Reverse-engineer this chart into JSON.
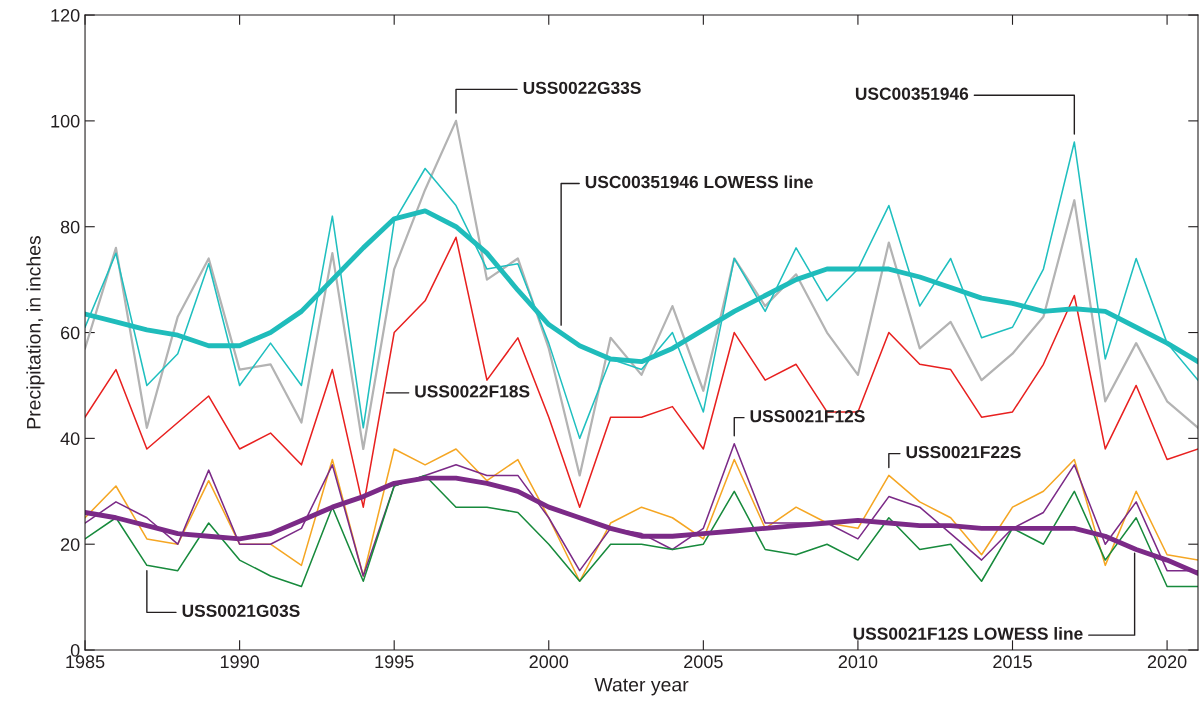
{
  "chart_data": {
    "type": "line",
    "xlabel": "Water year",
    "ylabel": "Precipitation, in inches",
    "x": [
      1985,
      1986,
      1987,
      1988,
      1989,
      1990,
      1991,
      1992,
      1993,
      1994,
      1995,
      1996,
      1997,
      1998,
      1999,
      2000,
      2001,
      2002,
      2003,
      2004,
      2005,
      2006,
      2007,
      2008,
      2009,
      2010,
      2011,
      2012,
      2013,
      2014,
      2015,
      2016,
      2017,
      2018,
      2019,
      2020,
      2021
    ],
    "xlim": [
      1985,
      2021
    ],
    "xticks": [
      1985,
      1990,
      1995,
      2000,
      2005,
      2010,
      2015,
      2020
    ],
    "ylim": [
      0,
      120
    ],
    "yticks": [
      0,
      20,
      40,
      60,
      80,
      100,
      120
    ],
    "grid": false,
    "legend": false,
    "marker": "none",
    "line_style": "solid",
    "series": [
      {
        "name": "USC00351946",
        "color": "#1fbfbf",
        "values": [
          61,
          75,
          50,
          56,
          73,
          50,
          58,
          50,
          82,
          42,
          81,
          91,
          84,
          72,
          73,
          58,
          40,
          55,
          53,
          60,
          45,
          74,
          64,
          76,
          66,
          72,
          84,
          65,
          74,
          59,
          61,
          72,
          96,
          55,
          74,
          58,
          51
        ]
      },
      {
        "name": "USS0022G33S",
        "color": "#b3b3b3",
        "values": [
          57,
          76,
          42,
          63,
          74,
          53,
          54,
          43,
          75,
          38,
          72,
          87,
          100,
          70,
          74,
          57,
          33,
          59,
          52,
          65,
          49,
          74,
          65,
          71,
          60,
          52,
          77,
          57,
          62,
          51,
          56,
          63,
          85,
          47,
          58,
          47,
          42
        ]
      },
      {
        "name": "USS0022F18S",
        "color": "#e8201f",
        "values": [
          44,
          53,
          38,
          43,
          48,
          38,
          41,
          35,
          53,
          27,
          60,
          66,
          78,
          51,
          59,
          44,
          27,
          44,
          44,
          46,
          38,
          60,
          51,
          54,
          45,
          45,
          60,
          54,
          53,
          44,
          45,
          54,
          67,
          38,
          50,
          36,
          38
        ]
      },
      {
        "name": "USS0021F22S",
        "color": "#f5a623",
        "values": [
          25,
          31,
          21,
          20,
          32,
          20,
          20,
          16,
          36,
          14,
          38,
          35,
          38,
          32,
          36,
          25,
          13,
          24,
          27,
          25,
          21,
          36,
          23,
          27,
          24,
          23,
          33,
          28,
          25,
          18,
          27,
          30,
          36,
          16,
          30,
          18,
          17
        ]
      },
      {
        "name": "USS0021F12S",
        "color": "#7b2a87",
        "values": [
          24,
          28,
          25,
          20,
          34,
          20,
          20,
          23,
          35,
          14,
          31,
          33,
          35,
          33,
          33,
          25,
          15,
          23,
          22,
          19,
          23,
          39,
          24,
          24,
          24,
          21,
          29,
          27,
          22,
          17,
          23,
          26,
          35,
          20,
          28,
          15,
          15
        ]
      },
      {
        "name": "USS0021G03S",
        "color": "#178a3c",
        "values": [
          21,
          25,
          16,
          15,
          24,
          17,
          14,
          12,
          27,
          13,
          31,
          33,
          27,
          27,
          26,
          20,
          13,
          20,
          20,
          19,
          20,
          30,
          19,
          18,
          20,
          17,
          25,
          19,
          20,
          13,
          23,
          20,
          30,
          17,
          25,
          12,
          12
        ]
      },
      {
        "name": "USC00351946 LOWESS line",
        "color": "#1fbcbb",
        "values": [
          63.5,
          62,
          60.5,
          59.5,
          57.5,
          57.5,
          60,
          64,
          70,
          76,
          81.5,
          83,
          80,
          75,
          68,
          61.5,
          57.5,
          55,
          54.5,
          57,
          60.5,
          64,
          67,
          70,
          72,
          72,
          72,
          70.5,
          68.5,
          66.5,
          65.5,
          64,
          64.5,
          64,
          61,
          58,
          54.5
        ]
      },
      {
        "name": "USS0021F12S LOWESS line",
        "color": "#7b2a87",
        "values": [
          26,
          25,
          23.5,
          22,
          21.5,
          21,
          22,
          24.5,
          27,
          29,
          31.5,
          32.5,
          32.5,
          31.5,
          30,
          27,
          25,
          23,
          21.5,
          21.5,
          22,
          22.5,
          23,
          23.5,
          24,
          24.5,
          24,
          23.5,
          23.5,
          23,
          23,
          23,
          23,
          21.5,
          19,
          17,
          14.5
        ]
      }
    ]
  }
}
